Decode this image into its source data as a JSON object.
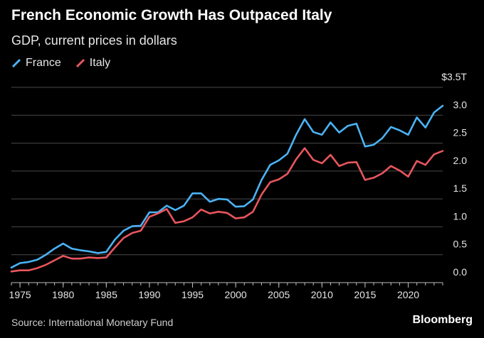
{
  "header": {
    "title": "French Economic Growth Has Outpaced Italy",
    "subtitle": "GDP, current prices in dollars"
  },
  "footer": {
    "source": "Source: International Monetary Fund",
    "brand": "Bloomberg"
  },
  "chart_data": {
    "type": "line",
    "title": "French Economic Growth Has Outpaced Italy",
    "subtitle": "GDP, current prices in dollars",
    "xlabel": "",
    "ylabel": "",
    "xlim": [
      1974,
      2024
    ],
    "ylim": [
      0,
      3.5
    ],
    "y_ticks": [
      0,
      0.5,
      1,
      1.5,
      2,
      2.5,
      3,
      3.5
    ],
    "y_tick_labels": [
      "0.0",
      "0.5",
      "1.0",
      "1.5",
      "2.0",
      "2.5",
      "3.0",
      "$3.5T"
    ],
    "x_ticks": [
      1975,
      1980,
      1985,
      1990,
      1995,
      2000,
      2005,
      2010,
      2015,
      2020
    ],
    "x_tick_labels": [
      "1975",
      "1980",
      "1985",
      "1990",
      "1995",
      "2000",
      "2005",
      "2010",
      "2015",
      "2020"
    ],
    "grid": "horizontal",
    "legend_position": "top-left",
    "x": [
      1974,
      1975,
      1976,
      1977,
      1978,
      1979,
      1980,
      1981,
      1982,
      1983,
      1984,
      1985,
      1986,
      1987,
      1988,
      1989,
      1990,
      1991,
      1992,
      1993,
      1994,
      1995,
      1996,
      1997,
      1998,
      1999,
      2000,
      2001,
      2002,
      2003,
      2004,
      2005,
      2006,
      2007,
      2008,
      2009,
      2010,
      2011,
      2012,
      2013,
      2014,
      2015,
      2016,
      2017,
      2018,
      2019,
      2020,
      2021,
      2022,
      2023,
      2024
    ],
    "series": [
      {
        "name": "France",
        "color": "#4bb3f5",
        "values": [
          0.27,
          0.35,
          0.37,
          0.41,
          0.5,
          0.61,
          0.7,
          0.61,
          0.58,
          0.56,
          0.53,
          0.55,
          0.77,
          0.93,
          1.01,
          1.02,
          1.26,
          1.26,
          1.38,
          1.3,
          1.38,
          1.6,
          1.6,
          1.45,
          1.5,
          1.49,
          1.36,
          1.37,
          1.49,
          1.84,
          2.11,
          2.19,
          2.31,
          2.65,
          2.93,
          2.7,
          2.65,
          2.87,
          2.69,
          2.81,
          2.85,
          2.44,
          2.47,
          2.59,
          2.79,
          2.73,
          2.65,
          2.96,
          2.78,
          3.05,
          3.17
        ]
      },
      {
        "name": "Italy",
        "color": "#e8565d",
        "values": [
          0.2,
          0.22,
          0.22,
          0.26,
          0.32,
          0.4,
          0.48,
          0.43,
          0.43,
          0.45,
          0.44,
          0.45,
          0.63,
          0.8,
          0.89,
          0.93,
          1.18,
          1.24,
          1.32,
          1.07,
          1.1,
          1.17,
          1.31,
          1.24,
          1.27,
          1.25,
          1.15,
          1.17,
          1.27,
          1.58,
          1.8,
          1.85,
          1.95,
          2.21,
          2.41,
          2.2,
          2.14,
          2.29,
          2.09,
          2.15,
          2.16,
          1.84,
          1.88,
          1.96,
          2.09,
          2.01,
          1.9,
          2.18,
          2.11,
          2.3,
          2.36
        ]
      }
    ]
  }
}
